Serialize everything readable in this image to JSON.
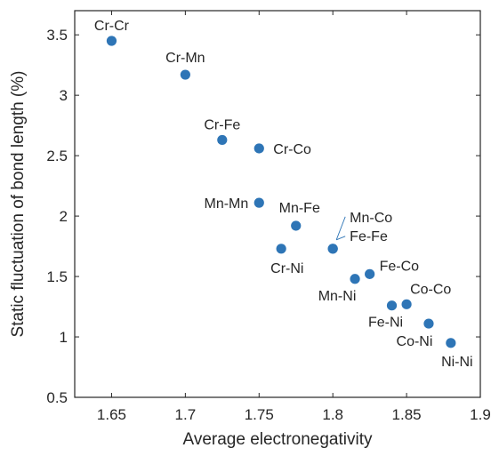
{
  "chart_data": {
    "type": "scatter",
    "xlabel": "Average electronegativity",
    "ylabel": "Static fluctuation of bond length (%)",
    "xlim": [
      1.625,
      1.9
    ],
    "ylim": [
      0.5,
      3.7
    ],
    "xticks": [
      "1.65",
      "1.7",
      "1.75",
      "1.8",
      "1.85",
      "1.9"
    ],
    "yticks": [
      "0.5",
      "1",
      "1.5",
      "2",
      "2.5",
      "3",
      "3.5"
    ],
    "grid": false,
    "marker_color": "#2e75b6",
    "points": [
      {
        "label": "Cr-Cr",
        "x": 1.65,
        "y": 3.45
      },
      {
        "label": "Cr-Mn",
        "x": 1.7,
        "y": 3.17
      },
      {
        "label": "Cr-Fe",
        "x": 1.725,
        "y": 2.63
      },
      {
        "label": "Cr-Co",
        "x": 1.75,
        "y": 2.56
      },
      {
        "label": "Mn-Mn",
        "x": 1.75,
        "y": 2.11
      },
      {
        "label": "Mn-Fe",
        "x": 1.775,
        "y": 1.92
      },
      {
        "label": "Cr-Ni",
        "x": 1.765,
        "y": 1.73
      },
      {
        "label": "Mn-Co",
        "x": 1.8,
        "y": 1.73
      },
      {
        "label": "Fe-Fe",
        "x": 1.8,
        "y": 1.73
      },
      {
        "label": "Fe-Co",
        "x": 1.825,
        "y": 1.52
      },
      {
        "label": "Mn-Ni",
        "x": 1.815,
        "y": 1.48
      },
      {
        "label": "Co-Co",
        "x": 1.85,
        "y": 1.27
      },
      {
        "label": "Fe-Ni",
        "x": 1.84,
        "y": 1.26
      },
      {
        "label": "Co-Ni",
        "x": 1.865,
        "y": 1.11
      },
      {
        "label": "Ni-Ni",
        "x": 1.88,
        "y": 0.95
      }
    ]
  }
}
